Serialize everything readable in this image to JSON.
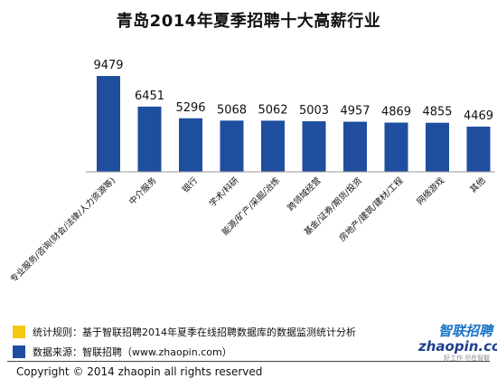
{
  "title": "青岛2014年夏季招聘十大高薪行业",
  "chart_data": {
    "type": "bar",
    "title": "青岛2014年夏季招聘十大高薪行业",
    "categories": [
      "专业服务/咨询(财会/法律/人力资源等)",
      "中介服务",
      "银行",
      "学术/科研",
      "能源/矿产/采掘/冶炼",
      "跨领域经营",
      "基金/证券/期货/投资",
      "房地产/建筑/建材/工程",
      "网络游戏",
      "其他"
    ],
    "values": [
      9479,
      6451,
      5296,
      5068,
      5062,
      5003,
      4957,
      4869,
      4855,
      4469
    ],
    "ylim": [
      0,
      10000
    ],
    "bar_color": "#1f4e9e",
    "grid": false,
    "legend": "none"
  },
  "notes": [
    {
      "swatch_color": "#f2c811",
      "text": "统计规则：基于智联招聘2014年夏季在线招聘数据库的数据监测统计分析"
    },
    {
      "swatch_color": "#1f4e9e",
      "text": "数据来源：智联招聘（www.zhaopin.com）"
    }
  ],
  "copyright": "Copyright  ©  2014 zhaopin all rights reserved",
  "logo": {
    "cn": "智联招聘",
    "en": "zhaopin.com",
    "sub": "好工作 尽在智联"
  }
}
